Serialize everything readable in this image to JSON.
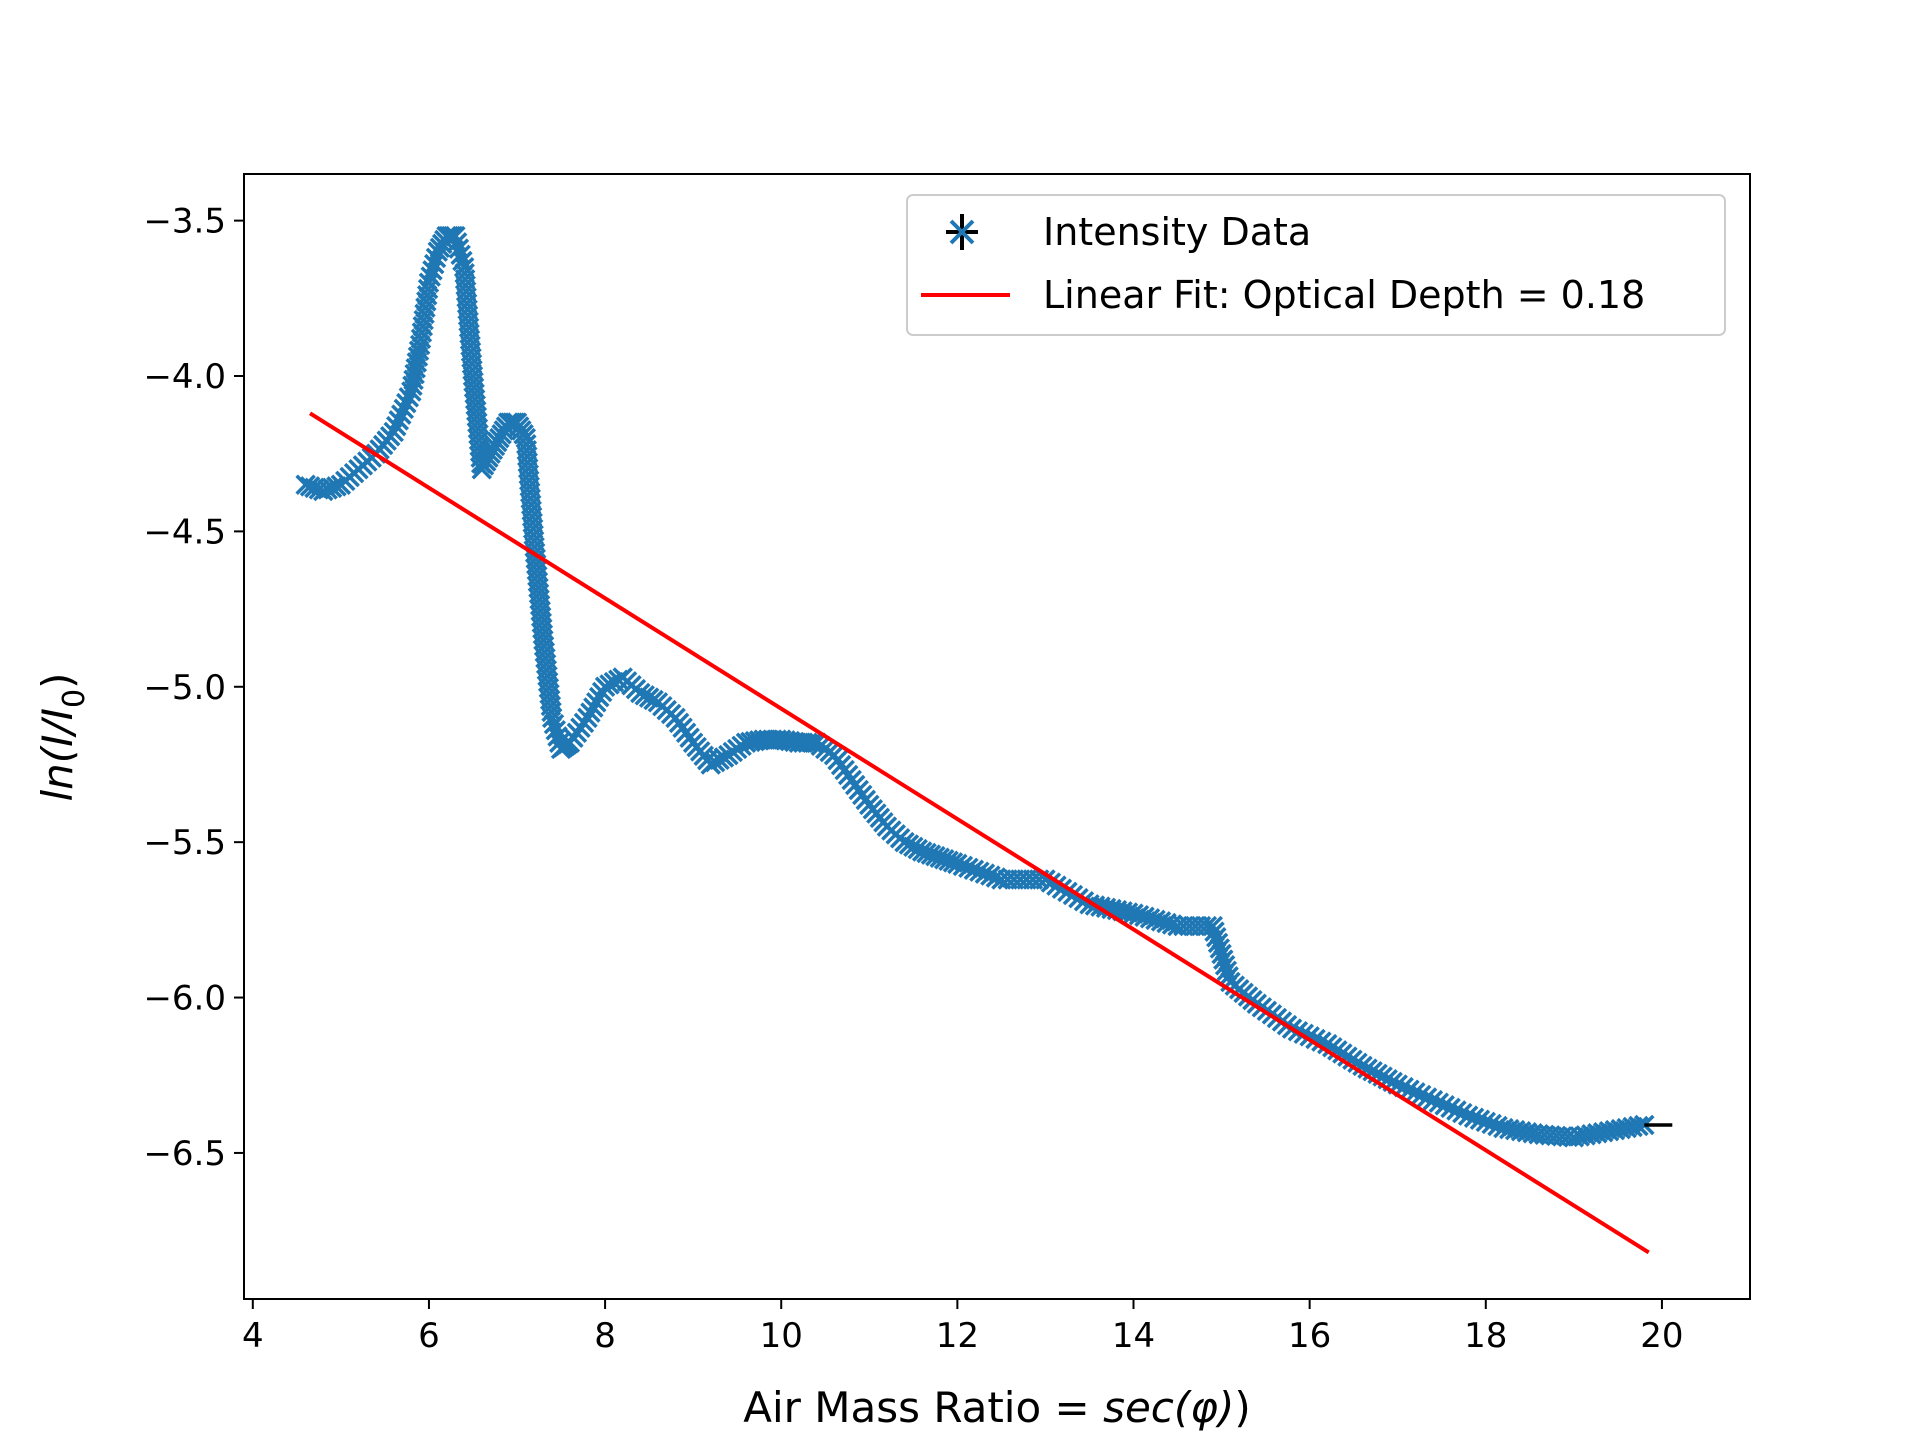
{
  "chart_data": {
    "type": "scatter",
    "title": "",
    "xlabel": "Air Mass Ratio = ",
    "xlabel_math": "sec(φ)",
    "ylabel_math": "ln(I/I",
    "ylabel_sub": "0",
    "ylabel_close": ")",
    "xlim": [
      3.9,
      21.0
    ],
    "ylim": [
      -6.97,
      -3.35
    ],
    "xticks": [
      4,
      6,
      8,
      10,
      12,
      14,
      16,
      18,
      20
    ],
    "xtick_labels": [
      "4",
      "6",
      "8",
      "10",
      "12",
      "14",
      "16",
      "18",
      "20"
    ],
    "yticks": [
      -3.5,
      -4.0,
      -4.5,
      -5.0,
      -5.5,
      -6.0,
      -6.5
    ],
    "ytick_labels": [
      "−3.5",
      "−4.0",
      "−4.5",
      "−5.0",
      "−5.5",
      "−6.0",
      "−6.5"
    ],
    "grid": false,
    "legend_position": "top-right",
    "series": [
      {
        "name": "Intensity Data",
        "marker": "x",
        "color": "#1f77b4",
        "errorbar_color": "#000000",
        "x": [
          4.6,
          4.8,
          5.0,
          5.2,
          5.4,
          5.6,
          5.8,
          5.9,
          6.0,
          6.1,
          6.2,
          6.3,
          6.4,
          6.5,
          6.6,
          6.7,
          6.8,
          6.9,
          7.0,
          7.1,
          7.2,
          7.3,
          7.4,
          7.5,
          7.6,
          7.8,
          8.0,
          8.2,
          8.4,
          8.6,
          8.8,
          9.0,
          9.2,
          9.4,
          9.6,
          9.8,
          10.0,
          10.2,
          10.4,
          10.6,
          10.8,
          11.0,
          11.2,
          11.4,
          11.6,
          11.8,
          12.0,
          12.5,
          13.0,
          13.5,
          14.0,
          14.5,
          14.9,
          15.1,
          15.4,
          15.8,
          16.2,
          16.6,
          17.0,
          17.4,
          17.8,
          18.2,
          18.6,
          19.0,
          19.4,
          19.8
        ],
        "y": [
          -4.35,
          -4.37,
          -4.35,
          -4.3,
          -4.25,
          -4.18,
          -4.05,
          -3.9,
          -3.7,
          -3.6,
          -3.55,
          -3.55,
          -3.65,
          -4.0,
          -4.3,
          -4.25,
          -4.2,
          -4.15,
          -4.15,
          -4.2,
          -4.55,
          -4.85,
          -5.1,
          -5.2,
          -5.18,
          -5.1,
          -5.0,
          -4.97,
          -5.02,
          -5.05,
          -5.1,
          -5.18,
          -5.25,
          -5.22,
          -5.18,
          -5.17,
          -5.17,
          -5.18,
          -5.18,
          -5.22,
          -5.3,
          -5.38,
          -5.45,
          -5.5,
          -5.53,
          -5.55,
          -5.57,
          -5.62,
          -5.62,
          -5.7,
          -5.73,
          -5.77,
          -5.77,
          -5.95,
          -6.02,
          -6.1,
          -6.15,
          -6.22,
          -6.28,
          -6.33,
          -6.38,
          -6.42,
          -6.44,
          -6.45,
          -6.43,
          -6.41
        ]
      },
      {
        "name": "Linear Fit: Optical Depth = 0.18",
        "type": "line",
        "color": "#ff0000",
        "x": [
          4.65,
          19.85
        ],
        "y": [
          -4.12,
          -6.82
        ]
      }
    ]
  }
}
